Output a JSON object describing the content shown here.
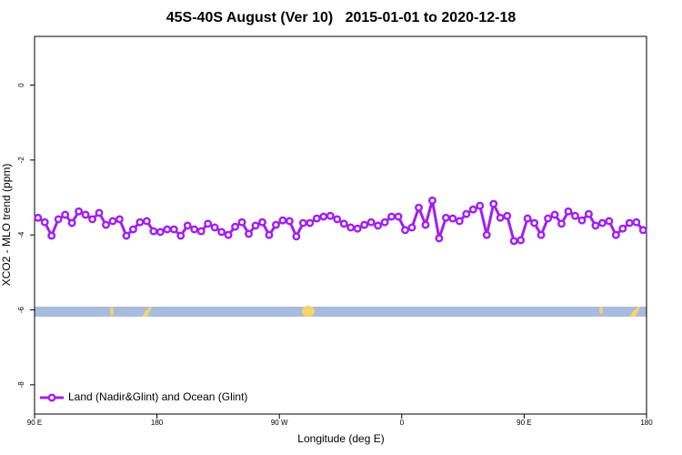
{
  "chart_data": {
    "type": "line",
    "title": "45S-40S August (Ver 10)   2015-01-01 to 2020-12-18",
    "x_label": "Longitude (deg E)",
    "y_label": "XCO2 - MLO trend (ppm)",
    "xlim": [
      90,
      540
    ],
    "ylim": [
      -8.78,
      1.3
    ],
    "xticks": [
      {
        "value": 90,
        "label": "90 E"
      },
      180,
      {
        "value": 270,
        "label": "90 W"
      },
      {
        "value": 360,
        "label": "0"
      },
      {
        "value": 450,
        "label": "90 E"
      },
      {
        "value": 540,
        "label": "180"
      }
    ],
    "yticks": [
      0,
      -2,
      -4,
      -6,
      -8
    ],
    "legend": "bottom-left",
    "x": [
      92.5,
      97.5,
      102.5,
      107.5,
      112.5,
      117.5,
      122.5,
      127.5,
      132.5,
      137.5,
      142.5,
      147.5,
      152.5,
      157.5,
      162.5,
      167.5,
      172.5,
      177.5,
      182.5,
      187.5,
      192.5,
      197.5,
      202.5,
      207.5,
      212.5,
      217.5,
      222.5,
      227.5,
      232.5,
      237.5,
      242.5,
      247.5,
      252.5,
      257.5,
      262.5,
      267.5,
      272.5,
      277.5,
      282.5,
      287.5,
      292.5,
      297.5,
      302.5,
      307.5,
      312.5,
      317.5,
      322.5,
      327.5,
      332.5,
      337.5,
      342.5,
      347.5,
      352.5,
      357.5,
      362.5,
      367.5,
      372.5,
      377.5,
      382.5,
      387.5,
      392.5,
      397.5,
      402.5,
      407.5,
      412.5,
      417.5,
      422.5,
      427.5,
      432.5,
      437.5,
      442.5,
      447.5,
      452.5,
      457.5,
      462.5,
      467.5,
      472.5,
      477.5,
      482.5,
      487.5,
      492.5,
      497.5,
      502.5,
      507.5,
      512.5,
      517.5,
      522.5,
      527.5,
      532.5,
      537.5
    ],
    "series": [
      {
        "name": "Land (Nadir&Glint) and Ocean (Glint)",
        "color": "#a020f0",
        "values": [
          -3.54,
          -3.66,
          -4.02,
          -3.58,
          -3.46,
          -3.68,
          -3.37,
          -3.46,
          -3.58,
          -3.41,
          -3.73,
          -3.63,
          -3.58,
          -4.02,
          -3.85,
          -3.66,
          -3.63,
          -3.9,
          -3.92,
          -3.85,
          -3.85,
          -4.02,
          -3.75,
          -3.85,
          -3.9,
          -3.7,
          -3.8,
          -3.92,
          -4.0,
          -3.78,
          -3.66,
          -3.97,
          -3.75,
          -3.66,
          -4.0,
          -3.73,
          -3.61,
          -3.63,
          -4.04,
          -3.68,
          -3.68,
          -3.56,
          -3.51,
          -3.49,
          -3.58,
          -3.7,
          -3.8,
          -3.83,
          -3.73,
          -3.66,
          -3.75,
          -3.66,
          -3.51,
          -3.51,
          -3.87,
          -3.8,
          -3.27,
          -3.73,
          -3.08,
          -4.09,
          -3.54,
          -3.56,
          -3.63,
          -3.44,
          -3.32,
          -3.22,
          -4.0,
          -3.17,
          -3.54,
          -3.49,
          -4.16,
          -4.14,
          -3.56,
          -3.68,
          -4.0,
          -3.56,
          -3.46,
          -3.7,
          -3.37,
          -3.49,
          -3.61,
          -3.44,
          -3.75,
          -3.68,
          -3.63,
          -4.0,
          -3.83,
          -3.68,
          -3.66,
          -3.87
        ]
      }
    ]
  }
}
